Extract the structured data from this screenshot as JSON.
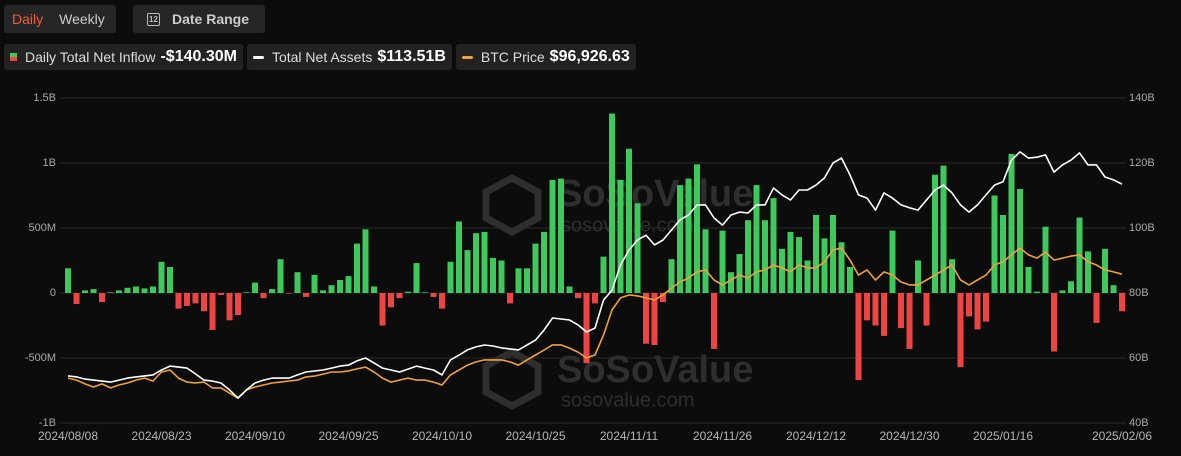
{
  "header": {
    "tabs": [
      "Daily",
      "Weekly"
    ],
    "calendar_day": "12",
    "date_range": "Date Range"
  },
  "watermark": {
    "brand": "SoSoValue",
    "url": "sosovalue.com"
  },
  "chart_data": {
    "type": "bar",
    "categories": [
      "2024/08/08",
      null,
      null,
      null,
      null,
      null,
      null,
      null,
      null,
      null,
      null,
      "2024/08/23",
      null,
      null,
      null,
      null,
      null,
      null,
      null,
      null,
      null,
      null,
      "2024/09/10",
      null,
      null,
      null,
      null,
      null,
      null,
      null,
      null,
      null,
      null,
      "2024/09/25",
      null,
      null,
      null,
      null,
      null,
      null,
      null,
      null,
      null,
      null,
      "2024/10/10",
      null,
      null,
      null,
      null,
      null,
      null,
      null,
      null,
      null,
      null,
      "2024/10/25",
      null,
      null,
      null,
      null,
      null,
      null,
      null,
      null,
      null,
      null,
      "2024/11/11",
      null,
      null,
      null,
      null,
      null,
      null,
      null,
      null,
      null,
      null,
      "2024/11/26",
      null,
      null,
      null,
      null,
      null,
      null,
      null,
      null,
      null,
      null,
      "2024/12/12",
      null,
      null,
      null,
      null,
      null,
      null,
      null,
      null,
      null,
      null,
      "2024/12/30",
      null,
      null,
      null,
      null,
      null,
      null,
      null,
      null,
      null,
      null,
      "2025/01/16",
      null,
      null,
      null,
      null,
      null,
      null,
      null,
      null,
      null,
      null,
      null,
      null,
      null,
      "2025/02/06"
    ],
    "ylim": [
      -1000000000.0,
      1500000000.0
    ],
    "yticks": [
      {
        "value": -1000000000.0,
        "label": "-1B"
      },
      {
        "value": -500000000.0,
        "label": "-500M"
      },
      0,
      {
        "value": 500000000.0,
        "label": "500M"
      },
      {
        "value": 1000000000.0,
        "label": "1B"
      },
      {
        "value": 1500000000.0,
        "label": "1.5B"
      }
    ],
    "y2lim": [
      40000000000.0,
      140000000000.0
    ],
    "y2ticks": [
      {
        "value": 40000000000.0,
        "label": "40B"
      },
      {
        "value": 60000000000.0,
        "label": "60B"
      },
      {
        "value": 80000000000.0,
        "label": "80B"
      },
      {
        "value": 100000000000.0,
        "label": "100B"
      },
      {
        "value": 120000000000.0,
        "label": "120B"
      },
      {
        "value": 140000000000.0,
        "label": "140B"
      }
    ],
    "grid": true,
    "series": [
      {
        "name": "Daily Total Net Inflow",
        "type": "bar",
        "color": "#3ec95c",
        "negative_color": "#ef4444",
        "latest_label": "-$140.30M",
        "values": [
          190000000.0,
          -85000000.0,
          20000000.0,
          30000000.0,
          -70000000.0,
          5000000.0,
          20000000.0,
          40000000.0,
          50000000.0,
          35000000.0,
          50000000.0,
          240000000.0,
          200000000.0,
          -120000000.0,
          -100000000.0,
          -80000000.0,
          -140000000.0,
          -285000000.0,
          -15000000.0,
          -210000000.0,
          -170000000.0,
          5000000.0,
          80000000.0,
          -40000000.0,
          30000000.0,
          260000000.0,
          -5000000.0,
          160000000.0,
          -30000000.0,
          140000000.0,
          20000000.0,
          60000000.0,
          100000000.0,
          130000000.0,
          380000000.0,
          490000000.0,
          50000000.0,
          -250000000.0,
          -110000000.0,
          -40000000.0,
          10000000.0,
          230000000.0,
          5000000.0,
          -30000000.0,
          -120000000.0,
          240000000.0,
          550000000.0,
          330000000.0,
          460000000.0,
          470000000.0,
          270000000.0,
          250000000.0,
          -80000000.0,
          190000000.0,
          190000000.0,
          380000000.0,
          470000000.0,
          870000000.0,
          880000000.0,
          50000000.0,
          -40000000.0,
          -540000000.0,
          -80000000.0,
          280000000.0,
          1380000000.0,
          870000000.0,
          1110000000.0,
          690000000.0,
          -390000000.0,
          -400000000.0,
          -70000000.0,
          260000000.0,
          830000000.0,
          880000000.0,
          990000000.0,
          490000000.0,
          -430000000.0,
          480000000.0,
          160000000.0,
          300000000.0,
          560000000.0,
          830000000.0,
          560000000.0,
          730000000.0,
          340000000.0,
          470000000.0,
          430000000.0,
          250000000.0,
          600000000.0,
          420000000.0,
          600000000.0,
          390000000.0,
          200000000.0,
          -670000000.0,
          -210000000.0,
          -250000000.0,
          -330000000.0,
          480000000.0,
          -270000000.0,
          -430000000.0,
          250000000.0,
          -250000000.0,
          910000000.0,
          980000000.0,
          260000000.0,
          -570000000.0,
          -180000000.0,
          -280000000.0,
          -220000000.0,
          750000000.0,
          600000000.0,
          1070000000.0,
          800000000.0,
          200000000.0,
          10000000.0,
          510000000.0,
          -450000000.0,
          20000000.0,
          90000000.0,
          580000000.0,
          320000000.0,
          -230000000.0,
          340000000.0,
          60000000.0,
          -140300000.0
        ]
      },
      {
        "name": "Total Net Assets",
        "type": "line",
        "axis": "y2",
        "color": "#ffffff",
        "latest_label": "$113.51B",
        "values": [
          54500000000.0,
          54200000000.0,
          53500000000.0,
          53200000000.0,
          52900000000.0,
          52600000000.0,
          53200000000.0,
          53800000000.0,
          54200000000.0,
          54500000000.0,
          54800000000.0,
          56300000000.0,
          57500000000.0,
          57200000000.0,
          56900000000.0,
          55100000000.0,
          53200000000.0,
          52900000000.0,
          52300000000.0,
          50200000000.0,
          47700000000.0,
          50200000000.0,
          52300000000.0,
          53200000000.0,
          53800000000.0,
          53800000000.0,
          53800000000.0,
          54800000000.0,
          55700000000.0,
          56000000000.0,
          56300000000.0,
          56900000000.0,
          57500000000.0,
          57800000000.0,
          59100000000.0,
          60000000000.0,
          58500000000.0,
          56900000000.0,
          56300000000.0,
          55700000000.0,
          56600000000.0,
          57500000000.0,
          56900000000.0,
          56300000000.0,
          54800000000.0,
          59400000000.0,
          60900000000.0,
          62500000000.0,
          63400000000.0,
          64000000000.0,
          63700000000.0,
          63100000000.0,
          62800000000.0,
          62500000000.0,
          64000000000.0,
          65500000000.0,
          68600000000.0,
          72300000000.0,
          72000000000.0,
          71700000000.0,
          70200000000.0,
          68000000000.0,
          69200000000.0,
          77800000000.0,
          80900000000.0,
          88600000000.0,
          93200000000.0,
          96300000000.0,
          97800000000.0,
          94800000000.0,
          96300000000.0,
          99400000000.0,
          102500000000.0,
          104000000000.0,
          107100000000.0,
          107100000000.0,
          103100000000.0,
          100900000000.0,
          104000000000.0,
          104900000000.0,
          104600000000.0,
          107100000000.0,
          107100000000.0,
          112300000000.0,
          110200000000.0,
          108600000000.0,
          111700000000.0,
          111700000000.0,
          113200000000.0,
          115400000000.0,
          120000000000.0,
          121500000000.0,
          116300000000.0,
          110200000000.0,
          109200000000.0,
          105500000000.0,
          110800000000.0,
          109200000000.0,
          107100000000.0,
          106200000000.0,
          105500000000.0,
          108600000000.0,
          111700000000.0,
          113200000000.0,
          110800000000.0,
          107100000000.0,
          104900000000.0,
          107100000000.0,
          110200000000.0,
          113200000000.0,
          114200000000.0,
          120900000000.0,
          123400000000.0,
          121500000000.0,
          121800000000.0,
          122500000000.0,
          117200000000.0,
          119400000000.0,
          120900000000.0,
          123100000000.0,
          119400000000.0,
          119400000000.0,
          115700000000.0,
          114800000000.0,
          113510000000.0
        ]
      },
      {
        "name": "BTC Price",
        "type": "line",
        "axis": "hidden",
        "color": "#f0a03c",
        "latest_label": "$96,926.63",
        "values": [
          60900,
          60200,
          58900,
          57800,
          58900,
          57500,
          58500,
          59200,
          60200,
          60900,
          59900,
          63000,
          63700,
          60900,
          59500,
          59200,
          59500,
          57500,
          57500,
          55700,
          54000,
          56800,
          57800,
          58500,
          59200,
          59500,
          59900,
          60200,
          61300,
          61600,
          62300,
          63000,
          63000,
          63400,
          64100,
          64700,
          63000,
          60900,
          59500,
          60200,
          60900,
          60200,
          60200,
          59500,
          58500,
          62000,
          63700,
          65400,
          66500,
          67200,
          67200,
          67200,
          66500,
          65400,
          67200,
          68900,
          70600,
          72400,
          72400,
          71300,
          69900,
          67900,
          68900,
          75800,
          84500,
          88700,
          89700,
          89400,
          88700,
          88000,
          89700,
          92100,
          94200,
          95600,
          97700,
          98400,
          94900,
          93200,
          94900,
          96600,
          95600,
          97700,
          98400,
          100100,
          99100,
          97700,
          100100,
          99100,
          99100,
          101200,
          105300,
          106000,
          101800,
          96600,
          98400,
          94900,
          97700,
          96600,
          94200,
          93200,
          93200,
          94900,
          96600,
          98400,
          100100,
          94900,
          93200,
          94900,
          96600,
          100100,
          101200,
          103600,
          106000,
          103600,
          102500,
          104600,
          101800,
          102500,
          103200,
          103600,
          101200,
          100100,
          98400,
          97700,
          96926.63
        ]
      }
    ]
  }
}
